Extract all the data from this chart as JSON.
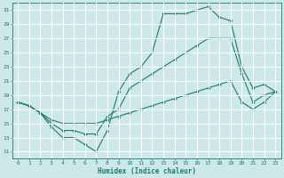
{
  "xlabel": "Humidex (Indice chaleur)",
  "bg_color": "#cde8e8",
  "grid_color": "#ffffff",
  "line_color": "#1a7a6e",
  "xlim": [
    -0.5,
    23.5
  ],
  "ylim": [
    10,
    32
  ],
  "xticks": [
    0,
    1,
    2,
    3,
    4,
    5,
    6,
    7,
    8,
    9,
    10,
    11,
    12,
    13,
    14,
    15,
    16,
    17,
    18,
    19,
    20,
    21,
    22,
    23
  ],
  "yticks": [
    11,
    13,
    15,
    17,
    19,
    21,
    23,
    25,
    27,
    29,
    31
  ],
  "line1_x": [
    0,
    1,
    2,
    3,
    4,
    5,
    6,
    7,
    8,
    9,
    10,
    11,
    12,
    13,
    14,
    15,
    16,
    17,
    18,
    19,
    20,
    21,
    22,
    23
  ],
  "line1_y": [
    18,
    17.5,
    16.5,
    14.5,
    13,
    13,
    12,
    11,
    14,
    19.5,
    22,
    23,
    25,
    30.5,
    30.5,
    30.5,
    31,
    31.5,
    30,
    29.5,
    23,
    20,
    20.5,
    19.5
  ],
  "line2_x": [
    0,
    1,
    2,
    3,
    4,
    5,
    6,
    7,
    8,
    9,
    10,
    11,
    12,
    13,
    14,
    15,
    16,
    17,
    18,
    19,
    20,
    21,
    22,
    23
  ],
  "line2_y": [
    18,
    17.5,
    16.5,
    15,
    14,
    14,
    13.5,
    13.5,
    16,
    17,
    20,
    21,
    22,
    23,
    24,
    25,
    26,
    27,
    27,
    27,
    22,
    18,
    19,
    19.5
  ],
  "line3_x": [
    0,
    1,
    2,
    3,
    4,
    5,
    6,
    7,
    8,
    9,
    10,
    11,
    12,
    13,
    14,
    15,
    16,
    17,
    18,
    19,
    20,
    21,
    22,
    23
  ],
  "line3_y": [
    18,
    17.5,
    16.5,
    15.5,
    15,
    15,
    15,
    15,
    15.5,
    16,
    16.5,
    17,
    17.5,
    18,
    18.5,
    19,
    19.5,
    20,
    20.5,
    21,
    18,
    17,
    18,
    19.5
  ]
}
